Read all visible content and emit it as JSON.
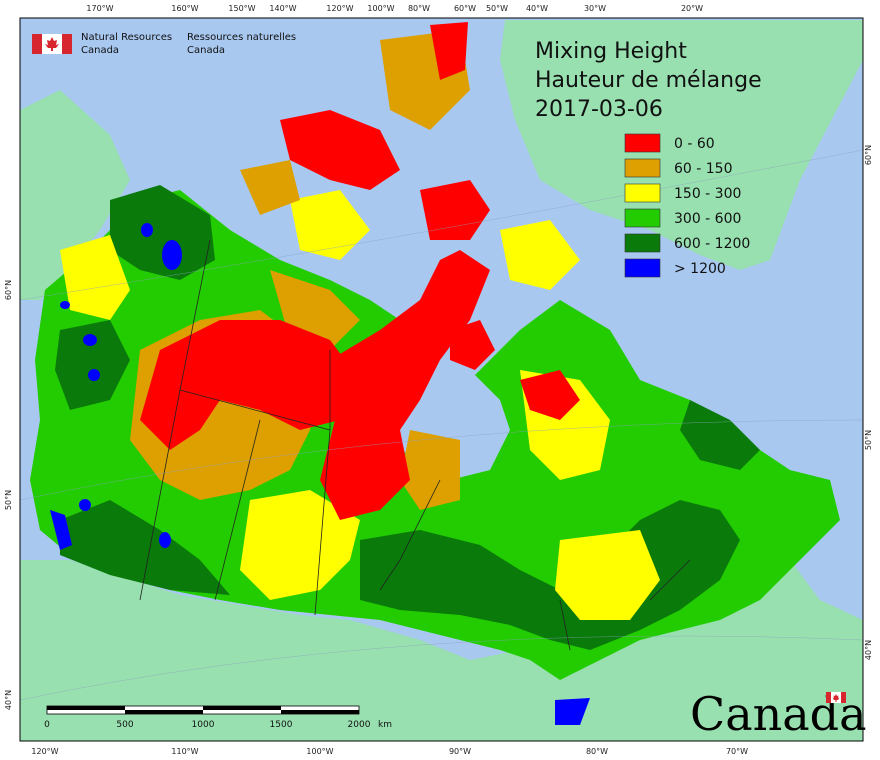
{
  "title": {
    "line1": "Mixing Height",
    "line2": "Hauteur de mélange",
    "date": "2017-03-06"
  },
  "agency": {
    "en_line1": "Natural Resources",
    "en_line2": "Canada",
    "fr_line1": "Ressources naturelles",
    "fr_line2": "Canada"
  },
  "wordmark": "Canada",
  "legend": [
    {
      "label": "0 - 60",
      "color": "#ff0000"
    },
    {
      "label": "60 - 150",
      "color": "#dda000"
    },
    {
      "label": "150 - 300",
      "color": "#ffff00"
    },
    {
      "label": "300 - 600",
      "color": "#22cc00"
    },
    {
      "label": "600 - 1200",
      "color": "#0a7a0a"
    },
    {
      "label": "> 1200",
      "color": "#0000ff"
    }
  ],
  "top_ticks": [
    "170°W",
    "160°W",
    "150°W",
    "140°W",
    "120°W",
    "100°W",
    "80°W",
    "60°W",
    "50°W",
    "40°W",
    "30°W",
    "20°W"
  ],
  "bottom_ticks": [
    "120°W",
    "110°W",
    "100°W",
    "90°W",
    "80°W",
    "70°W"
  ],
  "left_ticks": [
    "60°N",
    "50°N",
    "40°N"
  ],
  "right_ticks": [
    "60°N",
    "50°N",
    "40°N"
  ],
  "scale_bar": {
    "labels": [
      "0",
      "500",
      "1000",
      "1500",
      "2000"
    ],
    "unit": "km"
  },
  "colors": {
    "ocean": "#a8c8f0",
    "foreign_land": "#98e0b0",
    "frame": "#000000"
  }
}
